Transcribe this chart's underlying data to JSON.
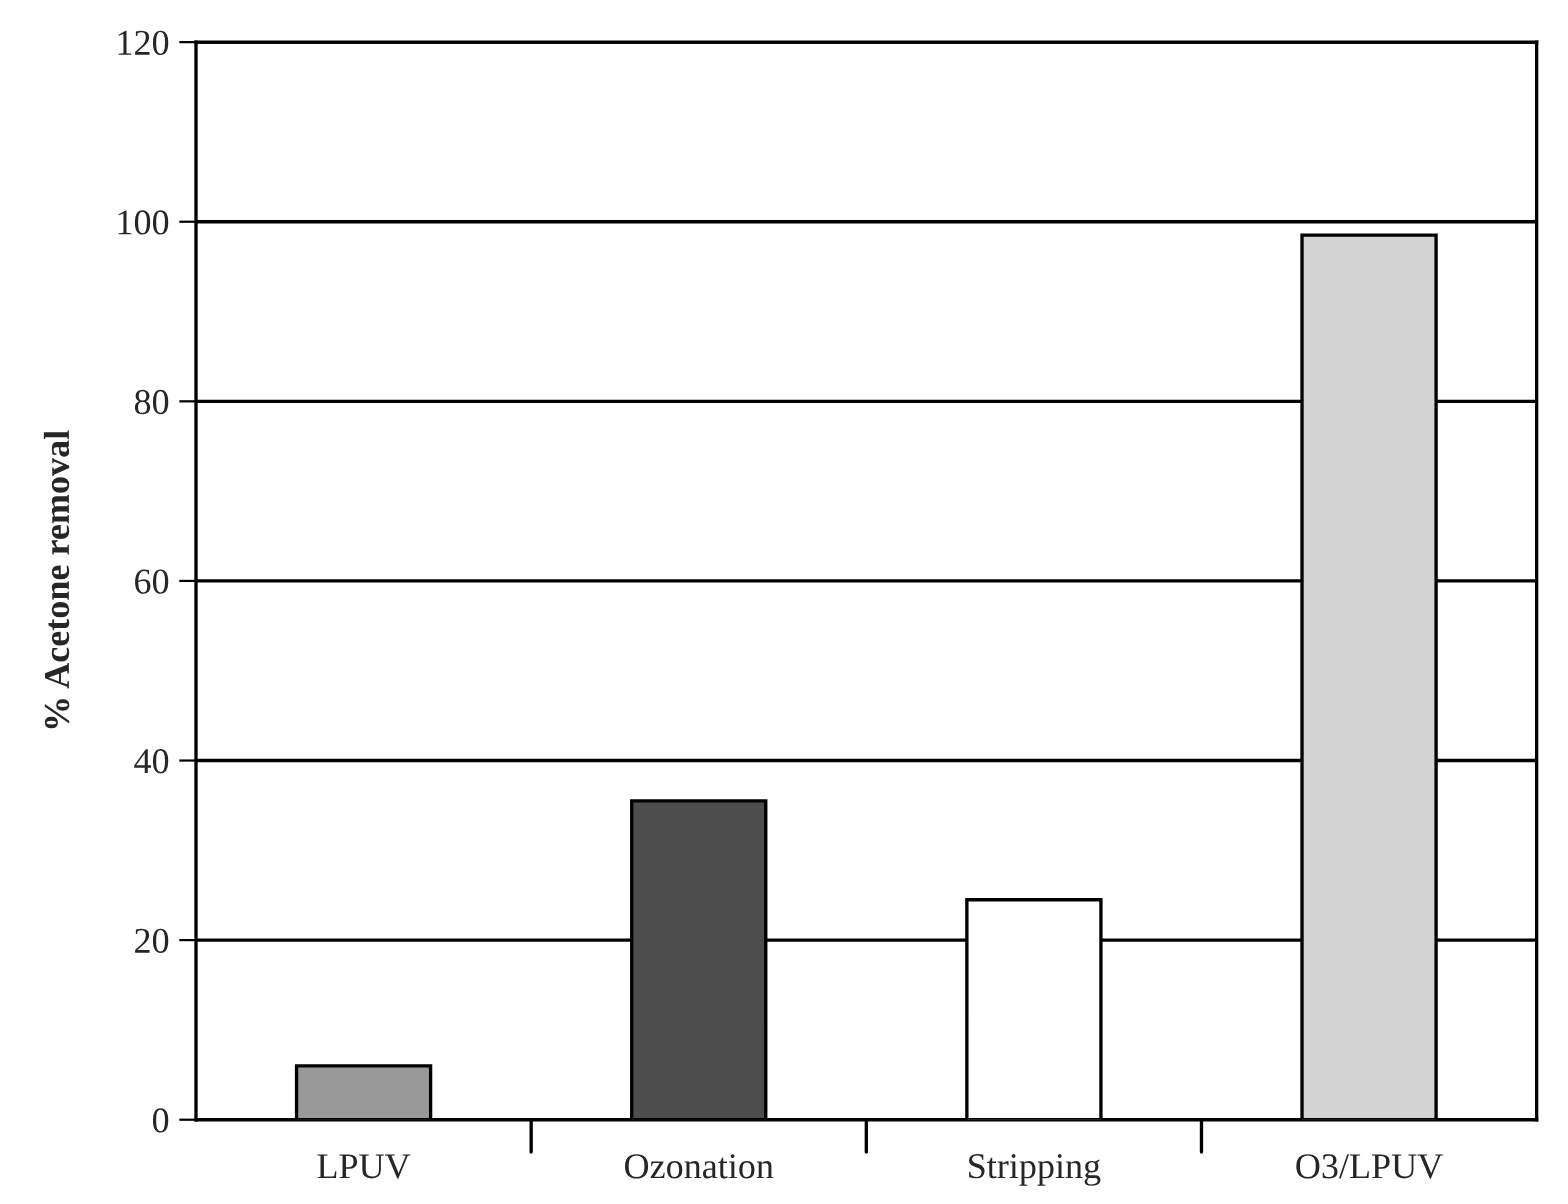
{
  "chart_data": {
    "type": "bar",
    "ylabel": "% Acetone removal",
    "categories": [
      "LPUV",
      "Ozonation",
      "Stripping",
      "O3/LPUV"
    ],
    "values": [
      6,
      35.5,
      24.5,
      98.5
    ],
    "colors": [
      "#999999",
      "#4d4d4d",
      "#ffffff",
      "#d3d3d3"
    ],
    "ylim": [
      0,
      120
    ],
    "yticks": [
      0,
      20,
      40,
      60,
      80,
      100,
      120
    ],
    "grid": "y",
    "legend": false
  }
}
